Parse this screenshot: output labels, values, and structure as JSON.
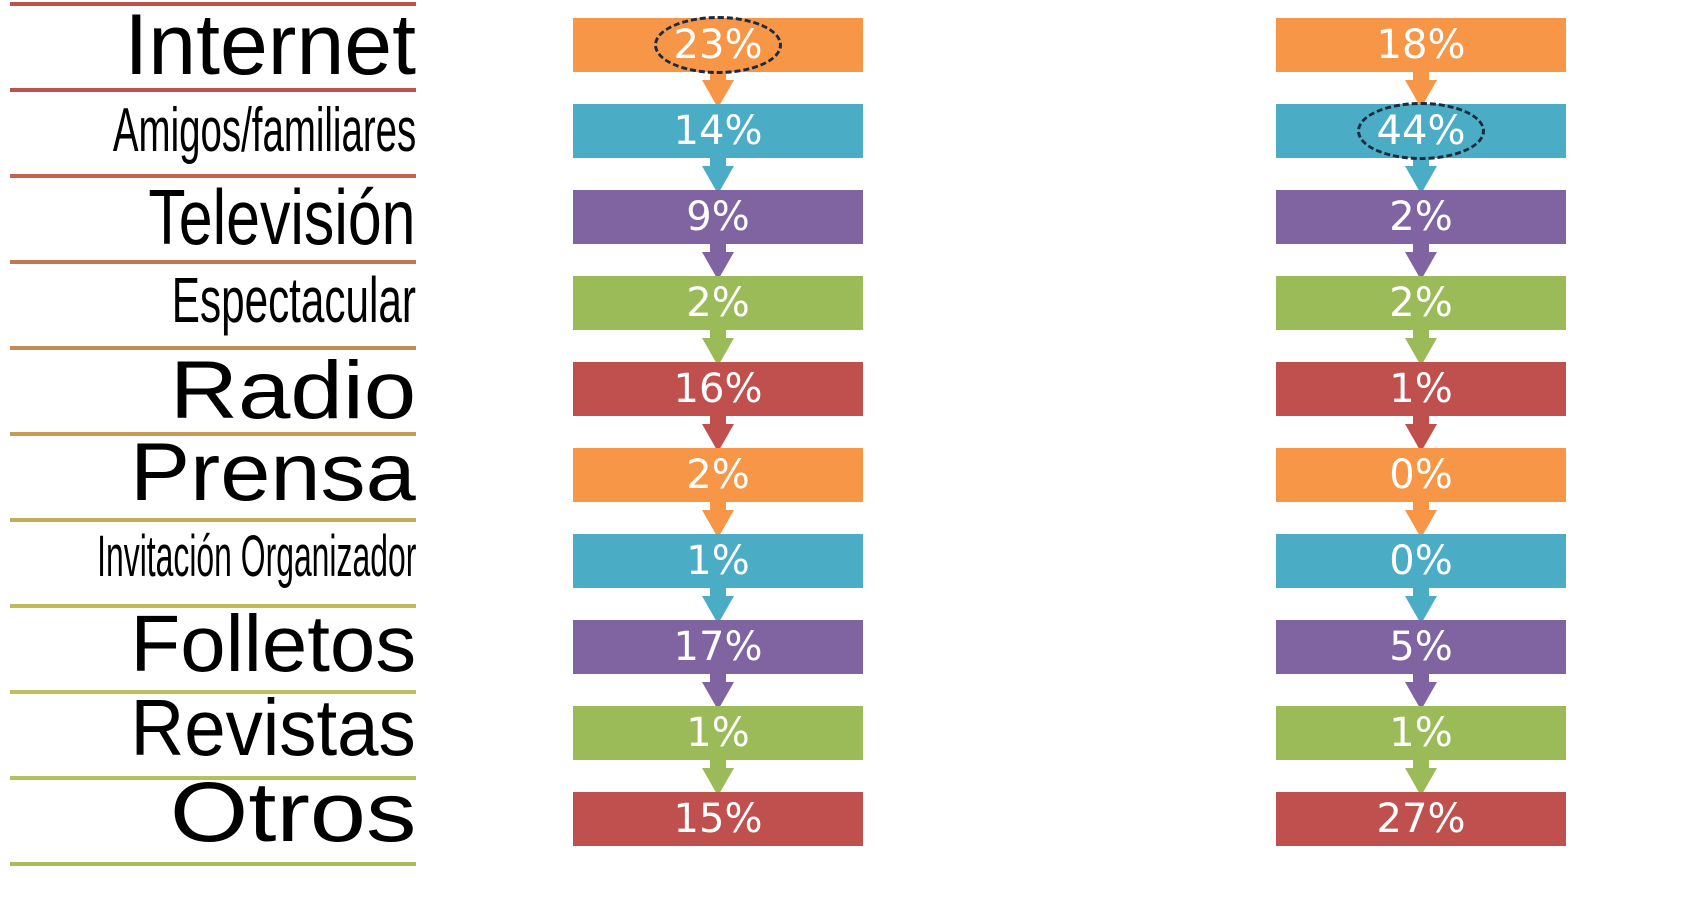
{
  "categories": [
    "Internet",
    "Amigos/familiares",
    "Televisión",
    "Espectacular",
    "Radio",
    "Prensa",
    "Invitación Organizador",
    "Folletos",
    "Revistas",
    "Otros"
  ],
  "columns": [
    {
      "values": [
        "23%",
        "14%",
        "9%",
        "2%",
        "16%",
        "2%",
        "1%",
        "17%",
        "1%",
        "15%"
      ],
      "highlighted_index": 0
    },
    {
      "values": [
        "18%",
        "44%",
        "2%",
        "2%",
        "1%",
        "0%",
        "0%",
        "5%",
        "1%",
        "27%"
      ],
      "highlighted_index": 1
    }
  ],
  "colors": {
    "orange": "#f79646",
    "teal": "#4bacc6",
    "purple": "#8064a2",
    "green": "#9bbb59",
    "red": "#c0504d",
    "highlight_outline": "#1a2a40"
  },
  "row_colors": [
    "orange",
    "teal",
    "purple",
    "green",
    "red",
    "orange",
    "teal",
    "purple",
    "green",
    "red"
  ],
  "separator_colors": [
    "#c0504d",
    "#c2644f",
    "#c47650",
    "#c48a54",
    "#c49c57",
    "#c2ab5a",
    "#c0b95c",
    "#bcbf5c",
    "#b4c05c",
    "#a8bd5a"
  ]
}
